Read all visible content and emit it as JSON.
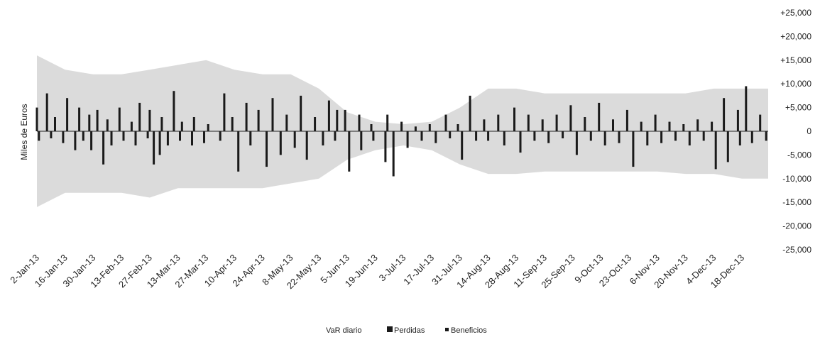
{
  "chart_data": {
    "type": "bar",
    "title": "",
    "xlabel": "",
    "ylabel": "Miles de Euros",
    "ylim": [
      -25000,
      25000
    ],
    "y_ticks": [
      {
        "value": 25000,
        "label": "+25,000"
      },
      {
        "value": 20000,
        "label": "+20,000"
      },
      {
        "value": 15000,
        "label": "+15,000"
      },
      {
        "value": 10000,
        "label": "+10,000"
      },
      {
        "value": 5000,
        "label": "+5,000"
      },
      {
        "value": 0,
        "label": "0"
      },
      {
        "value": -5000,
        "label": "-5,000"
      },
      {
        "value": -10000,
        "label": "-10,000"
      },
      {
        "value": -15000,
        "label": "-15,000"
      },
      {
        "value": -20000,
        "label": "-20,000"
      },
      {
        "value": -25000,
        "label": "-25,000"
      }
    ],
    "x_tick_labels": [
      "2-Jan-13",
      "16-Jan-13",
      "30-Jan-13",
      "13-Feb-13",
      "27-Feb-13",
      "13-Mar-13",
      "27-Mar-13",
      "10-Apr-13",
      "24-Apr-13",
      "8-May-13",
      "22-May-13",
      "5-Jun-13",
      "19-Jun-13",
      "3-Jul-13",
      "17-Jul-13",
      "31-Jul-13",
      "14-Aug-13",
      "28-Aug-13",
      "11-Sep-13",
      "25-Sep-13",
      "9-Oct-13",
      "23-Oct-13",
      "6-Nov-13",
      "20-Nov-13",
      "4-Dec-13",
      "18-Dec-13"
    ],
    "grid": false,
    "legend_position": "bottom-center",
    "legend": [
      "VaR diario",
      "Perdidas",
      "Beneficios"
    ],
    "colors": {
      "var_band": "#bdbdbd",
      "bars": "#1a1a1a"
    },
    "var_envelope": {
      "upper_keypoints": [
        {
          "x": "2-Jan-13",
          "y": 16000
        },
        {
          "x": "16-Jan-13",
          "y": 13000
        },
        {
          "x": "30-Jan-13",
          "y": 12000
        },
        {
          "x": "13-Feb-13",
          "y": 12000
        },
        {
          "x": "27-Feb-13",
          "y": 13000
        },
        {
          "x": "13-Mar-13",
          "y": 14000
        },
        {
          "x": "27-Mar-13",
          "y": 15000
        },
        {
          "x": "10-Apr-13",
          "y": 13000
        },
        {
          "x": "24-Apr-13",
          "y": 12000
        },
        {
          "x": "8-May-13",
          "y": 12000
        },
        {
          "x": "22-May-13",
          "y": 9000
        },
        {
          "x": "5-Jun-13",
          "y": 4000
        },
        {
          "x": "19-Jun-13",
          "y": 2000
        },
        {
          "x": "3-Jul-13",
          "y": 1500
        },
        {
          "x": "17-Jul-13",
          "y": 2000
        },
        {
          "x": "31-Jul-13",
          "y": 5000
        },
        {
          "x": "14-Aug-13",
          "y": 9000
        },
        {
          "x": "28-Aug-13",
          "y": 9000
        },
        {
          "x": "11-Sep-13",
          "y": 8000
        },
        {
          "x": "25-Sep-13",
          "y": 8000
        },
        {
          "x": "9-Oct-13",
          "y": 8000
        },
        {
          "x": "23-Oct-13",
          "y": 8000
        },
        {
          "x": "6-Nov-13",
          "y": 8000
        },
        {
          "x": "20-Nov-13",
          "y": 8000
        },
        {
          "x": "4-Dec-13",
          "y": 9000
        },
        {
          "x": "18-Dec-13",
          "y": 9000
        }
      ],
      "lower_keypoints": [
        {
          "x": "2-Jan-13",
          "y": -16000
        },
        {
          "x": "16-Jan-13",
          "y": -13000
        },
        {
          "x": "30-Jan-13",
          "y": -13000
        },
        {
          "x": "13-Feb-13",
          "y": -13000
        },
        {
          "x": "27-Feb-13",
          "y": -14000
        },
        {
          "x": "13-Mar-13",
          "y": -12000
        },
        {
          "x": "27-Mar-13",
          "y": -12000
        },
        {
          "x": "10-Apr-13",
          "y": -12000
        },
        {
          "x": "24-Apr-13",
          "y": -12000
        },
        {
          "x": "8-May-13",
          "y": -11000
        },
        {
          "x": "22-May-13",
          "y": -10000
        },
        {
          "x": "5-Jun-13",
          "y": -6000
        },
        {
          "x": "19-Jun-13",
          "y": -4000
        },
        {
          "x": "3-Jul-13",
          "y": -3000
        },
        {
          "x": "17-Jul-13",
          "y": -4000
        },
        {
          "x": "31-Jul-13",
          "y": -7000
        },
        {
          "x": "14-Aug-13",
          "y": -9000
        },
        {
          "x": "28-Aug-13",
          "y": -9000
        },
        {
          "x": "11-Sep-13",
          "y": -8500
        },
        {
          "x": "25-Sep-13",
          "y": -8500
        },
        {
          "x": "9-Oct-13",
          "y": -8500
        },
        {
          "x": "23-Oct-13",
          "y": -8500
        },
        {
          "x": "6-Nov-13",
          "y": -8500
        },
        {
          "x": "20-Nov-13",
          "y": -9000
        },
        {
          "x": "4-Dec-13",
          "y": -9000
        },
        {
          "x": "18-Dec-13",
          "y": -10000
        }
      ]
    },
    "series": [
      {
        "name": "Perdidas",
        "points": [
          {
            "x": "3-Jan-13",
            "y": -2000
          },
          {
            "x": "9-Jan-13",
            "y": -1500
          },
          {
            "x": "15-Jan-13",
            "y": -2500
          },
          {
            "x": "21-Jan-13",
            "y": -4000
          },
          {
            "x": "25-Jan-13",
            "y": -2000
          },
          {
            "x": "29-Jan-13",
            "y": -4000
          },
          {
            "x": "4-Feb-13",
            "y": -7000
          },
          {
            "x": "8-Feb-13",
            "y": -3000
          },
          {
            "x": "14-Feb-13",
            "y": -2000
          },
          {
            "x": "20-Feb-13",
            "y": -3000
          },
          {
            "x": "26-Feb-13",
            "y": -1500
          },
          {
            "x": "1-Mar-13",
            "y": -7000
          },
          {
            "x": "4-Mar-13",
            "y": -5000
          },
          {
            "x": "8-Mar-13",
            "y": -3000
          },
          {
            "x": "14-Mar-13",
            "y": -2000
          },
          {
            "x": "20-Mar-13",
            "y": -3000
          },
          {
            "x": "26-Mar-13",
            "y": -2500
          },
          {
            "x": "3-Apr-13",
            "y": -2000
          },
          {
            "x": "12-Apr-13",
            "y": -8500
          },
          {
            "x": "18-Apr-13",
            "y": -3000
          },
          {
            "x": "26-Apr-13",
            "y": -7500
          },
          {
            "x": "3-May-13",
            "y": -5000
          },
          {
            "x": "10-May-13",
            "y": -3500
          },
          {
            "x": "16-May-13",
            "y": -6000
          },
          {
            "x": "24-May-13",
            "y": -3000
          },
          {
            "x": "30-May-13",
            "y": -2000
          },
          {
            "x": "6-Jun-13",
            "y": -8500
          },
          {
            "x": "12-Jun-13",
            "y": -4000
          },
          {
            "x": "18-Jun-13",
            "y": -2000
          },
          {
            "x": "24-Jun-13",
            "y": -6500
          },
          {
            "x": "28-Jun-13",
            "y": -9500
          },
          {
            "x": "5-Jul-13",
            "y": -3500
          },
          {
            "x": "12-Jul-13",
            "y": -2000
          },
          {
            "x": "19-Jul-13",
            "y": -2500
          },
          {
            "x": "26-Jul-13",
            "y": -1500
          },
          {
            "x": "1-Aug-13",
            "y": -6000
          },
          {
            "x": "8-Aug-13",
            "y": -2000
          },
          {
            "x": "14-Aug-13",
            "y": -2000
          },
          {
            "x": "22-Aug-13",
            "y": -3000
          },
          {
            "x": "30-Aug-13",
            "y": -4500
          },
          {
            "x": "6-Sep-13",
            "y": -2000
          },
          {
            "x": "13-Sep-13",
            "y": -2500
          },
          {
            "x": "20-Sep-13",
            "y": -1500
          },
          {
            "x": "27-Sep-13",
            "y": -5000
          },
          {
            "x": "4-Oct-13",
            "y": -2000
          },
          {
            "x": "11-Oct-13",
            "y": -3000
          },
          {
            "x": "18-Oct-13",
            "y": -2500
          },
          {
            "x": "25-Oct-13",
            "y": -7500
          },
          {
            "x": "1-Nov-13",
            "y": -3000
          },
          {
            "x": "8-Nov-13",
            "y": -2500
          },
          {
            "x": "15-Nov-13",
            "y": -2000
          },
          {
            "x": "22-Nov-13",
            "y": -3000
          },
          {
            "x": "29-Nov-13",
            "y": -2000
          },
          {
            "x": "5-Dec-13",
            "y": -8000
          },
          {
            "x": "11-Dec-13",
            "y": -6500
          },
          {
            "x": "17-Dec-13",
            "y": -3000
          },
          {
            "x": "23-Dec-13",
            "y": -2500
          },
          {
            "x": "30-Dec-13",
            "y": -2000
          }
        ]
      },
      {
        "name": "Beneficios",
        "points": [
          {
            "x": "2-Jan-13",
            "y": 5000
          },
          {
            "x": "7-Jan-13",
            "y": 8000
          },
          {
            "x": "11-Jan-13",
            "y": 3000
          },
          {
            "x": "17-Jan-13",
            "y": 7000
          },
          {
            "x": "23-Jan-13",
            "y": 5000
          },
          {
            "x": "28-Jan-13",
            "y": 3500
          },
          {
            "x": "1-Feb-13",
            "y": 4500
          },
          {
            "x": "6-Feb-13",
            "y": 2500
          },
          {
            "x": "12-Feb-13",
            "y": 5000
          },
          {
            "x": "18-Feb-13",
            "y": 2000
          },
          {
            "x": "22-Feb-13",
            "y": 6000
          },
          {
            "x": "27-Feb-13",
            "y": 4500
          },
          {
            "x": "5-Mar-13",
            "y": 3000
          },
          {
            "x": "11-Mar-13",
            "y": 8500
          },
          {
            "x": "15-Mar-13",
            "y": 2000
          },
          {
            "x": "21-Mar-13",
            "y": 3000
          },
          {
            "x": "28-Mar-13",
            "y": 1500
          },
          {
            "x": "5-Apr-13",
            "y": 8000
          },
          {
            "x": "9-Apr-13",
            "y": 3000
          },
          {
            "x": "16-Apr-13",
            "y": 6000
          },
          {
            "x": "22-Apr-13",
            "y": 4500
          },
          {
            "x": "29-Apr-13",
            "y": 7000
          },
          {
            "x": "6-May-13",
            "y": 3500
          },
          {
            "x": "13-May-13",
            "y": 7500
          },
          {
            "x": "20-May-13",
            "y": 3000
          },
          {
            "x": "27-May-13",
            "y": 6500
          },
          {
            "x": "31-May-13",
            "y": 4500
          },
          {
            "x": "4-Jun-13",
            "y": 4500
          },
          {
            "x": "11-Jun-13",
            "y": 3500
          },
          {
            "x": "17-Jun-13",
            "y": 1500
          },
          {
            "x": "25-Jun-13",
            "y": 3500
          },
          {
            "x": "2-Jul-13",
            "y": 2000
          },
          {
            "x": "9-Jul-13",
            "y": 1000
          },
          {
            "x": "16-Jul-13",
            "y": 1500
          },
          {
            "x": "24-Jul-13",
            "y": 3500
          },
          {
            "x": "30-Jul-13",
            "y": 1500
          },
          {
            "x": "5-Aug-13",
            "y": 7500
          },
          {
            "x": "12-Aug-13",
            "y": 2500
          },
          {
            "x": "19-Aug-13",
            "y": 3500
          },
          {
            "x": "27-Aug-13",
            "y": 5000
          },
          {
            "x": "3-Sep-13",
            "y": 3500
          },
          {
            "x": "10-Sep-13",
            "y": 2500
          },
          {
            "x": "17-Sep-13",
            "y": 3500
          },
          {
            "x": "24-Sep-13",
            "y": 5500
          },
          {
            "x": "1-Oct-13",
            "y": 3000
          },
          {
            "x": "8-Oct-13",
            "y": 6000
          },
          {
            "x": "15-Oct-13",
            "y": 2500
          },
          {
            "x": "22-Oct-13",
            "y": 4500
          },
          {
            "x": "29-Oct-13",
            "y": 2000
          },
          {
            "x": "5-Nov-13",
            "y": 3500
          },
          {
            "x": "12-Nov-13",
            "y": 2000
          },
          {
            "x": "19-Nov-13",
            "y": 1500
          },
          {
            "x": "26-Nov-13",
            "y": 2500
          },
          {
            "x": "3-Dec-13",
            "y": 2000
          },
          {
            "x": "9-Dec-13",
            "y": 7000
          },
          {
            "x": "16-Dec-13",
            "y": 4500
          },
          {
            "x": "20-Dec-13",
            "y": 9500
          },
          {
            "x": "27-Dec-13",
            "y": 3500
          }
        ]
      }
    ]
  }
}
